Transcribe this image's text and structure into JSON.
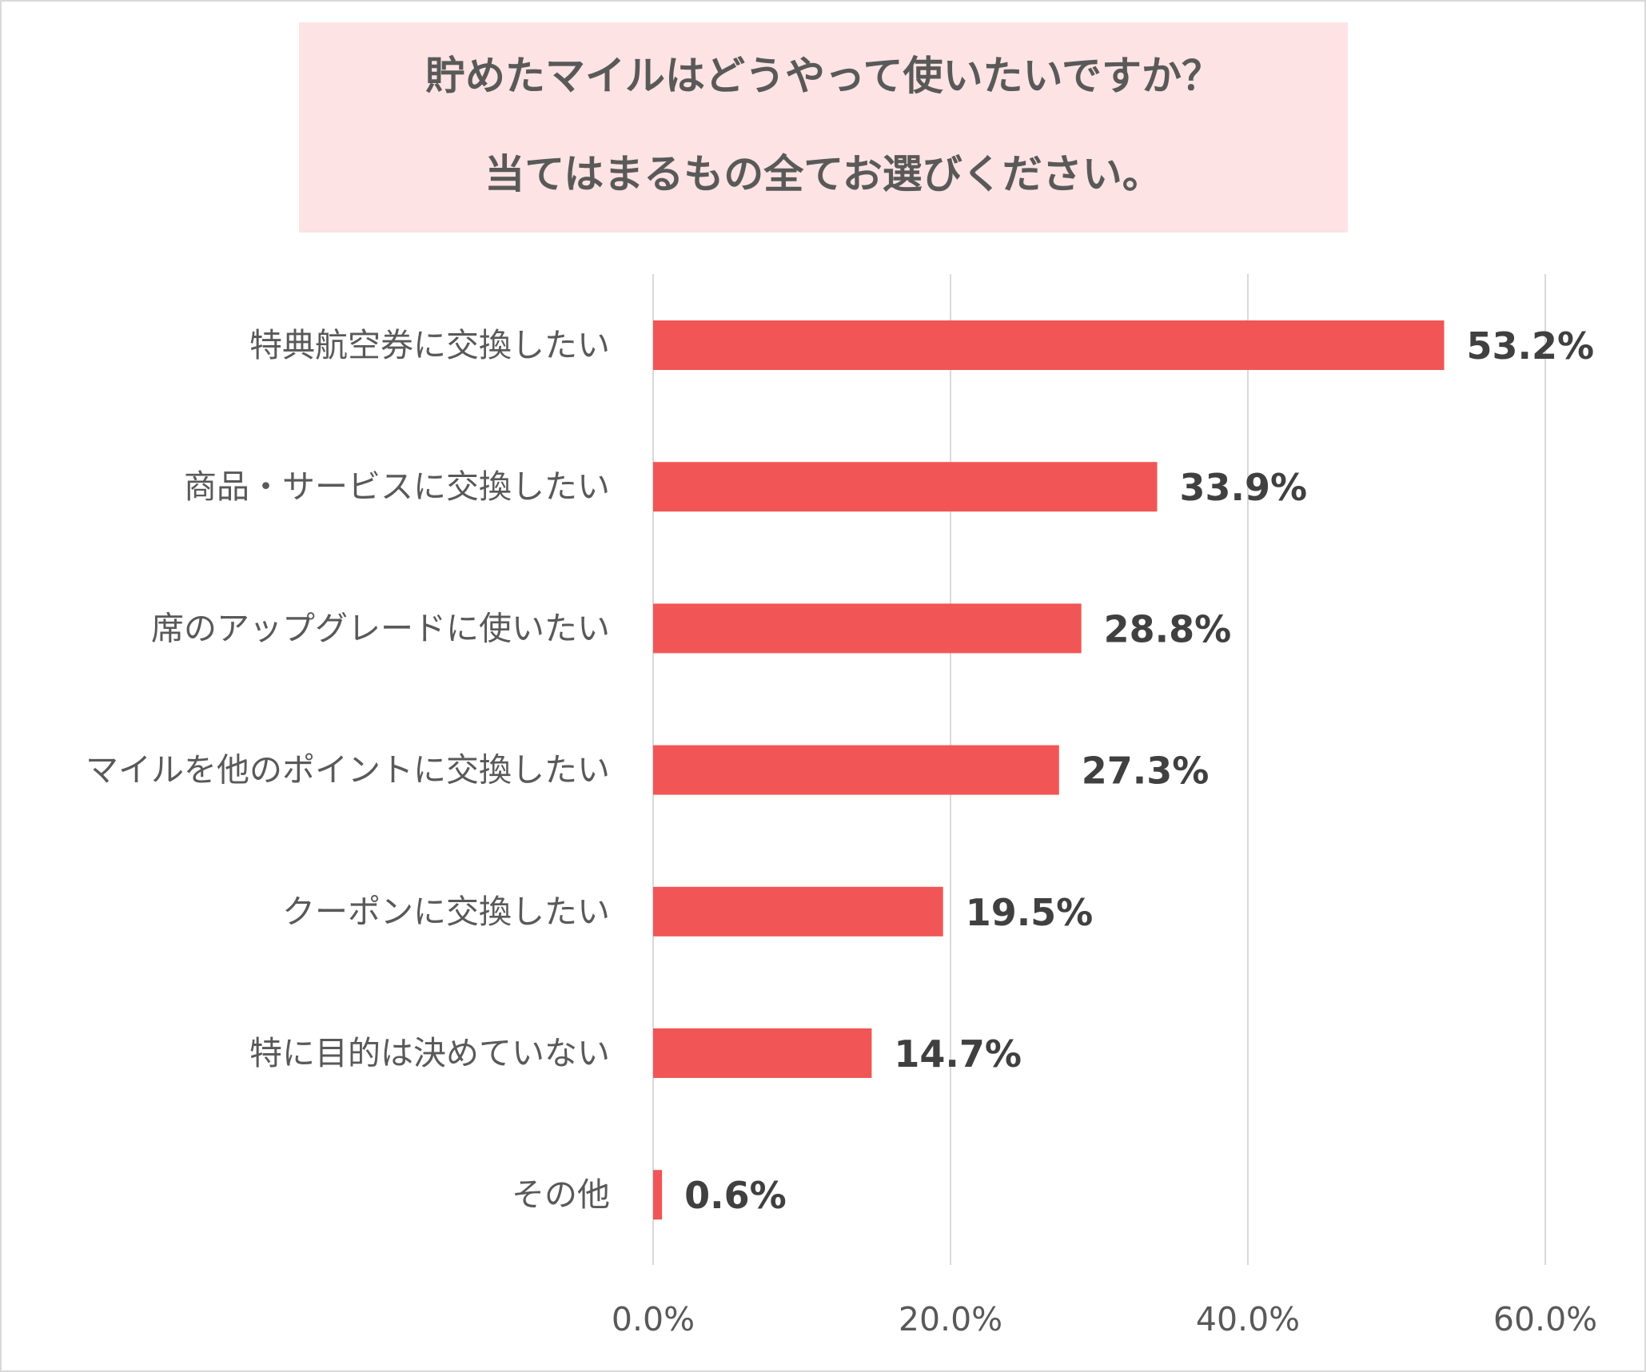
{
  "chart_data": {
    "type": "bar",
    "orientation": "horizontal",
    "title": [
      "貯めたマイルはどうやって使いたいですか？",
      "当てはまるもの全てお選びください。"
    ],
    "categories": [
      "特典航空券に交換したい",
      "商品・サービスに交換したい",
      "席のアップグレードに使いたい",
      "マイルを他のポイントに交換したい",
      "クーポンに交換したい",
      "特に目的は決めていない",
      "その他"
    ],
    "values": [
      53.2,
      33.9,
      28.8,
      27.3,
      19.5,
      14.7,
      0.6
    ],
    "value_labels": [
      "53.2%",
      "33.9%",
      "28.8%",
      "27.3%",
      "19.5%",
      "14.7%",
      "0.6%"
    ],
    "xlim": [
      0,
      60
    ],
    "x_ticks": [
      0,
      20,
      40,
      60
    ],
    "x_tick_labels": [
      "0.0%",
      "20.0%",
      "40.0%",
      "60.0%"
    ],
    "grid": "vertical",
    "legend": "none",
    "colors": {
      "bar": "#f25555",
      "gridline": "#d9d9d9",
      "title_background": "#fde3e3",
      "title_text": "#595959",
      "value_text": "#404040",
      "label_text": "#595959"
    }
  }
}
